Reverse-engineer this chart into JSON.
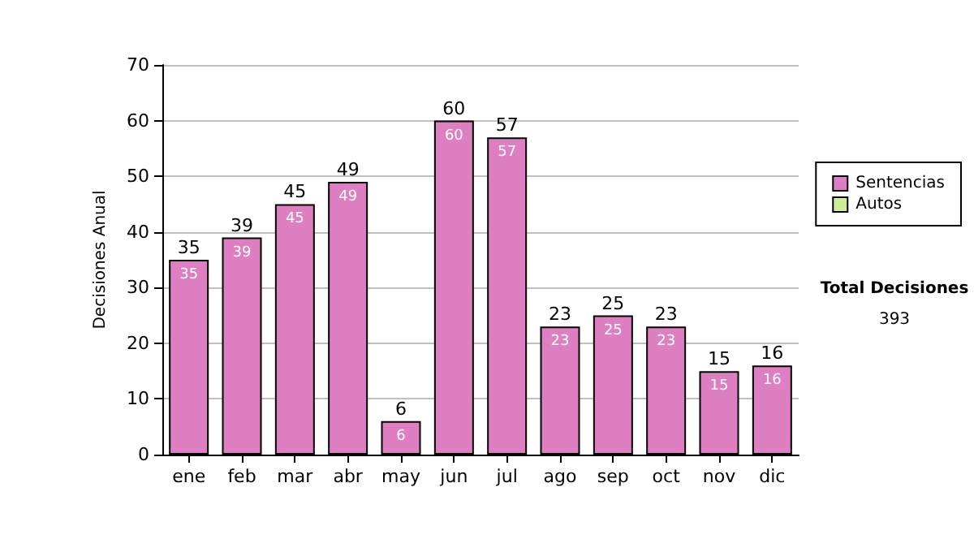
{
  "chart_data": {
    "type": "bar",
    "stacked": true,
    "ylabel": "Decisiones Anual",
    "categories": [
      "ene",
      "feb",
      "mar",
      "abr",
      "may",
      "jun",
      "jul",
      "ago",
      "sep",
      "oct",
      "nov",
      "dic"
    ],
    "series": [
      {
        "name": "Sentencias",
        "color": "#dd7fc0",
        "values": [
          35,
          39,
          45,
          49,
          6,
          60,
          57,
          23,
          25,
          23,
          15,
          16
        ],
        "value_labels": [
          "35",
          "39",
          "45",
          "49",
          "6",
          "60",
          "57",
          "23",
          "25",
          "23",
          "15",
          "16"
        ]
      },
      {
        "name": "Autos",
        "color": "#ccee99",
        "values": [
          null,
          null,
          null,
          null,
          null,
          null,
          null,
          null,
          null,
          null,
          null,
          null
        ]
      }
    ],
    "totals": [
      "35",
      "39",
      "45",
      "49",
      "6",
      "60",
      "57",
      "23",
      "25",
      "23",
      "15",
      "16"
    ],
    "ylim": [
      0,
      70
    ],
    "yticks": [
      0,
      10,
      20,
      30,
      40,
      50,
      60,
      70
    ],
    "grid": "y",
    "legend": "right",
    "annotations": [
      "Total Decisiones",
      "393"
    ]
  }
}
